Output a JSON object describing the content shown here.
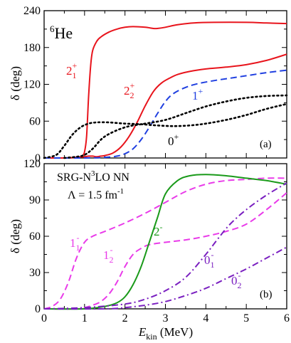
{
  "chart_data": [
    {
      "type": "line",
      "panel_label": "(a)",
      "xlim": [
        0,
        6
      ],
      "ylim": [
        0,
        240
      ],
      "yticks": [
        "0",
        "60",
        "120",
        "180",
        "240"
      ],
      "ylabel": "δ (deg)",
      "annotations": {
        "nucleus_sup": "6",
        "nucleus": "He"
      },
      "series": [
        {
          "color": "#e8141c",
          "dash": "solid",
          "label": {
            "base": "2",
            "sub": "1",
            "sup": "+"
          },
          "x": [
            0.0,
            0.5,
            0.8,
            0.9,
            0.95,
            1.0,
            1.05,
            1.1,
            1.15,
            1.2,
            1.3,
            1.4,
            1.6,
            1.8,
            2.0,
            2.2,
            2.5,
            2.7,
            2.8,
            3.0,
            3.3,
            3.7,
            4.2,
            5.0,
            5.5,
            6.0
          ],
          "y": [
            0,
            0,
            1,
            2,
            4,
            10,
            35,
            100,
            150,
            175,
            190,
            197,
            205,
            210,
            213,
            214,
            213,
            211,
            211,
            213,
            217,
            220,
            221,
            221,
            220,
            219
          ]
        },
        {
          "color": "#e8141c",
          "dash": "solid",
          "label": {
            "base": "2",
            "sub": "2",
            "sup": "+"
          },
          "x": [
            0.0,
            0.5,
            0.8,
            1.0,
            1.1,
            1.2,
            1.3,
            1.4,
            1.5,
            1.7,
            1.9,
            2.1,
            2.3,
            2.5,
            2.7,
            2.9,
            3.1,
            3.3,
            3.6,
            4.0,
            4.5,
            5.0,
            5.5,
            6.0
          ],
          "y": [
            0,
            0,
            1,
            2,
            3,
            3,
            2,
            3,
            4,
            8,
            18,
            35,
            58,
            85,
            108,
            122,
            130,
            136,
            141,
            145,
            148,
            152,
            159,
            169
          ]
        },
        {
          "color": "#1f3fe0",
          "dash": "dashed",
          "label": {
            "base": "1",
            "sup": "+"
          },
          "x": [
            0.0,
            1.0,
            1.5,
            1.8,
            2.0,
            2.2,
            2.4,
            2.6,
            2.8,
            3.0,
            3.2,
            3.5,
            3.8,
            4.2,
            4.6,
            5.0,
            5.5,
            6.0
          ],
          "y": [
            0,
            0,
            1,
            3,
            7,
            15,
            30,
            50,
            72,
            92,
            105,
            115,
            121,
            126,
            130,
            134,
            139,
            143
          ]
        },
        {
          "color": "#000000",
          "dash": "dotted",
          "label": {
            "base": "0",
            "sup": "+"
          },
          "x": [
            0.0,
            0.3,
            0.5,
            0.7,
            0.9,
            1.1,
            1.3,
            1.6,
            2.0,
            2.4,
            2.8,
            3.2,
            3.6,
            4.0,
            4.5,
            5.0,
            5.5,
            6.0
          ],
          "y": [
            0,
            5,
            20,
            38,
            50,
            56,
            58,
            58,
            56,
            55,
            53,
            52,
            53,
            56,
            62,
            70,
            80,
            88
          ]
        },
        {
          "color": "#000000",
          "dash": "dotted",
          "x": [
            0.5,
            0.8,
            1.0,
            1.2,
            1.5,
            2.0,
            2.5,
            3.0,
            3.5,
            4.0,
            4.5,
            5.0,
            5.5,
            6.0
          ],
          "y": [
            0,
            2,
            5,
            15,
            35,
            50,
            56,
            62,
            73,
            84,
            92,
            98,
            101,
            102
          ]
        }
      ]
    },
    {
      "type": "line",
      "panel_label": "(b)",
      "xlim": [
        0,
        6
      ],
      "ylim": [
        0,
        120
      ],
      "yticks": [
        "0",
        "30",
        "60",
        "90",
        "120"
      ],
      "xticks": [
        "0",
        "1",
        "2",
        "3",
        "4",
        "5",
        "6"
      ],
      "ylabel": "δ (deg)",
      "xlabel": {
        "main": "E",
        "sub": "kin",
        "unit": " (MeV)"
      },
      "annotations": {
        "model_prefix": "SRG-N",
        "model_sup": "3",
        "model_suffix": "LO NN",
        "lambda_text": "Λ = 1.5 fm",
        "lambda_sup": "-1"
      },
      "series": [
        {
          "color": "#e93be9",
          "dash": "dashed",
          "label": {
            "base": "1",
            "sub": "1",
            "sup": "-"
          },
          "x": [
            0.0,
            0.2,
            0.4,
            0.6,
            0.8,
            1.0,
            1.2,
            1.5,
            2.0,
            2.5,
            3.0,
            3.5,
            4.0,
            4.5,
            5.0,
            5.5,
            6.0
          ],
          "y": [
            0,
            2,
            8,
            22,
            42,
            55,
            60,
            64,
            71,
            79,
            88,
            97,
            103,
            106,
            107,
            108,
            108
          ]
        },
        {
          "color": "#e93be9",
          "dash": "dashed",
          "label": {
            "base": "1",
            "sub": "2",
            "sup": "-"
          },
          "x": [
            0.0,
            0.8,
            1.0,
            1.2,
            1.4,
            1.6,
            1.8,
            2.0,
            2.2,
            2.4,
            2.6,
            3.0,
            3.5,
            4.0,
            4.5,
            5.0,
            5.5,
            6.0
          ],
          "y": [
            0,
            0,
            1,
            3,
            6,
            12,
            22,
            35,
            45,
            50,
            53,
            55,
            57,
            60,
            64,
            70,
            82,
            96
          ]
        },
        {
          "color": "#1a9a1a",
          "dash": "solid",
          "label": {
            "base": "2",
            "sup": "-"
          },
          "x": [
            0.0,
            1.0,
            1.5,
            1.8,
            2.0,
            2.2,
            2.4,
            2.6,
            2.8,
            3.0,
            3.3,
            3.6,
            4.0,
            4.5,
            5.0,
            5.5,
            6.0
          ],
          "y": [
            0,
            0,
            2,
            5,
            10,
            20,
            35,
            55,
            75,
            95,
            106,
            110,
            111,
            110,
            108,
            106,
            103
          ]
        },
        {
          "color": "#7a1fc0",
          "dash": "dashdot",
          "label": {
            "base": "0",
            "sub": "1",
            "sup": "-"
          },
          "x": [
            0.0,
            1.0,
            2.0,
            2.5,
            3.0,
            3.5,
            4.0,
            4.3,
            4.6,
            5.0,
            5.5,
            6.0
          ],
          "y": [
            0,
            1,
            4,
            8,
            15,
            26,
            45,
            58,
            70,
            82,
            94,
            104
          ]
        },
        {
          "color": "#7a1fc0",
          "dash": "dashdot",
          "label": {
            "base": "0",
            "sub": "2",
            "sup": "-"
          },
          "x": [
            0.0,
            1.5,
            2.0,
            2.5,
            3.0,
            3.5,
            4.0,
            4.5,
            5.0,
            5.5,
            6.0
          ],
          "y": [
            0,
            0,
            1,
            3,
            6,
            11,
            17,
            25,
            33,
            42,
            51
          ]
        }
      ]
    }
  ]
}
